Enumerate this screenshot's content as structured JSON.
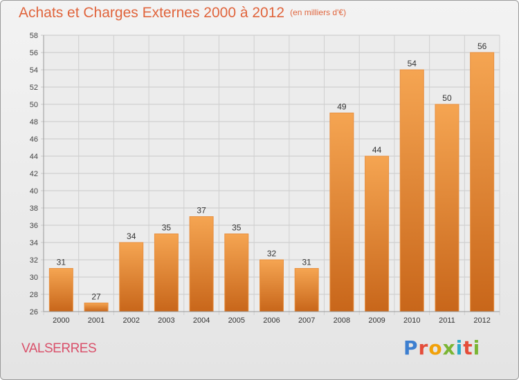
{
  "header": {
    "title": "Achats et Charges Externes 2000 à 2012",
    "unit": "(en milliers d'€)"
  },
  "footer": {
    "commune": "VALSERRES",
    "logo": [
      "P",
      "r",
      "o",
      "x",
      "i",
      "t",
      "i"
    ]
  },
  "colors": {
    "bar_top": "#f5a552",
    "bar_bottom": "#c8661a",
    "title": "#e0643c",
    "commune": "#d9506a"
  },
  "chart_data": {
    "type": "bar",
    "title": "Achats et Charges Externes 2000 à 2012",
    "subtitle": "(en milliers d'€)",
    "categories": [
      "2000",
      "2001",
      "2002",
      "2003",
      "2004",
      "2005",
      "2006",
      "2007",
      "2008",
      "2009",
      "2010",
      "2011",
      "2012"
    ],
    "values": [
      31,
      27,
      34,
      35,
      37,
      35,
      32,
      31,
      49,
      44,
      54,
      50,
      56
    ],
    "ylim": [
      26,
      58
    ],
    "yticks": [
      26,
      28,
      30,
      32,
      34,
      36,
      38,
      40,
      42,
      44,
      46,
      48,
      50,
      52,
      54,
      56,
      58
    ],
    "grid": true,
    "legend": "none"
  }
}
